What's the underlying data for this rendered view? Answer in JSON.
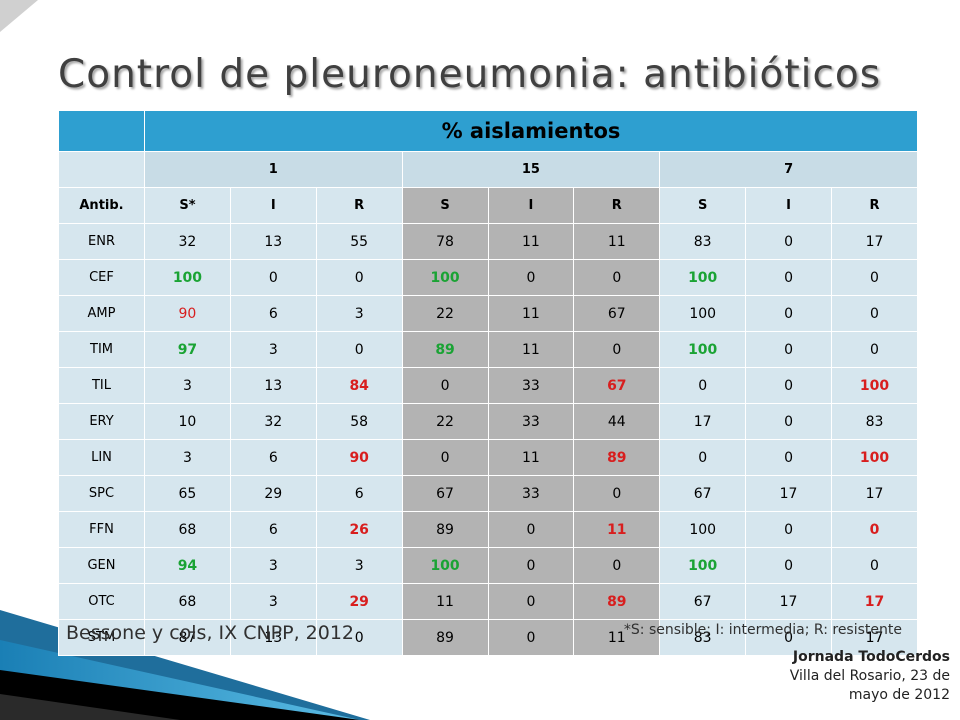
{
  "title": "Control de pleuroneumonia: antibióticos",
  "table": {
    "group_header": "% aislamientos",
    "groups": [
      "1",
      "15",
      "7"
    ],
    "col_header_first": "Antib.",
    "sub_headers": [
      "S*",
      "I",
      "R",
      "S",
      "I",
      "R",
      "S",
      "I",
      "R"
    ],
    "rows": [
      {
        "name": "ENR",
        "cells": [
          {
            "v": "32"
          },
          {
            "v": "13"
          },
          {
            "v": "55"
          },
          {
            "v": "78"
          },
          {
            "v": "11"
          },
          {
            "v": "11"
          },
          {
            "v": "83"
          },
          {
            "v": "0"
          },
          {
            "v": "17"
          }
        ]
      },
      {
        "name": "CEF",
        "cells": [
          {
            "v": "100",
            "c": "green"
          },
          {
            "v": "0"
          },
          {
            "v": "0"
          },
          {
            "v": "100",
            "c": "green"
          },
          {
            "v": "0"
          },
          {
            "v": "0"
          },
          {
            "v": "100",
            "c": "green"
          },
          {
            "v": "0"
          },
          {
            "v": "0"
          }
        ]
      },
      {
        "name": "AMP",
        "cells": [
          {
            "v": "90",
            "c": "redplain"
          },
          {
            "v": "6"
          },
          {
            "v": "3"
          },
          {
            "v": "22"
          },
          {
            "v": "11"
          },
          {
            "v": "67"
          },
          {
            "v": "100"
          },
          {
            "v": "0"
          },
          {
            "v": "0"
          }
        ]
      },
      {
        "name": "TIM",
        "cells": [
          {
            "v": "97",
            "c": "green"
          },
          {
            "v": "3"
          },
          {
            "v": "0"
          },
          {
            "v": "89",
            "c": "green"
          },
          {
            "v": "11"
          },
          {
            "v": "0"
          },
          {
            "v": "100",
            "c": "green"
          },
          {
            "v": "0"
          },
          {
            "v": "0"
          }
        ]
      },
      {
        "name": "TIL",
        "cells": [
          {
            "v": "3"
          },
          {
            "v": "13"
          },
          {
            "v": "84",
            "c": "red"
          },
          {
            "v": "0"
          },
          {
            "v": "33"
          },
          {
            "v": "67",
            "c": "red"
          },
          {
            "v": "0"
          },
          {
            "v": "0"
          },
          {
            "v": "100",
            "c": "red"
          }
        ]
      },
      {
        "name": "ERY",
        "cells": [
          {
            "v": "10"
          },
          {
            "v": "32"
          },
          {
            "v": "58"
          },
          {
            "v": "22"
          },
          {
            "v": "33"
          },
          {
            "v": "44"
          },
          {
            "v": "17"
          },
          {
            "v": "0"
          },
          {
            "v": "83"
          }
        ]
      },
      {
        "name": "LIN",
        "cells": [
          {
            "v": "3"
          },
          {
            "v": "6"
          },
          {
            "v": "90",
            "c": "red"
          },
          {
            "v": "0"
          },
          {
            "v": "11"
          },
          {
            "v": "89",
            "c": "red"
          },
          {
            "v": "0"
          },
          {
            "v": "0"
          },
          {
            "v": "100",
            "c": "red"
          }
        ]
      },
      {
        "name": "SPC",
        "cells": [
          {
            "v": "65"
          },
          {
            "v": "29"
          },
          {
            "v": "6"
          },
          {
            "v": "67"
          },
          {
            "v": "33"
          },
          {
            "v": "0"
          },
          {
            "v": "67"
          },
          {
            "v": "17"
          },
          {
            "v": "17"
          }
        ]
      },
      {
        "name": "FFN",
        "cells": [
          {
            "v": "68"
          },
          {
            "v": "6"
          },
          {
            "v": "26",
            "c": "red"
          },
          {
            "v": "89"
          },
          {
            "v": "0"
          },
          {
            "v": "11",
            "c": "red"
          },
          {
            "v": "100"
          },
          {
            "v": "0"
          },
          {
            "v": "0",
            "c": "red"
          }
        ]
      },
      {
        "name": "GEN",
        "cells": [
          {
            "v": "94",
            "c": "green"
          },
          {
            "v": "3"
          },
          {
            "v": "3"
          },
          {
            "v": "100",
            "c": "green"
          },
          {
            "v": "0"
          },
          {
            "v": "0"
          },
          {
            "v": "100",
            "c": "green"
          },
          {
            "v": "0"
          },
          {
            "v": "0"
          }
        ]
      },
      {
        "name": "OTC",
        "cells": [
          {
            "v": "68"
          },
          {
            "v": "3"
          },
          {
            "v": "29",
            "c": "red"
          },
          {
            "v": "11"
          },
          {
            "v": "0"
          },
          {
            "v": "89",
            "c": "red"
          },
          {
            "v": "67"
          },
          {
            "v": "17"
          },
          {
            "v": "17",
            "c": "red"
          }
        ]
      },
      {
        "name": "STM",
        "cells": [
          {
            "v": "87"
          },
          {
            "v": "13"
          },
          {
            "v": "0"
          },
          {
            "v": "89"
          },
          {
            "v": "0"
          },
          {
            "v": "11"
          },
          {
            "v": "83"
          },
          {
            "v": "0"
          },
          {
            "v": "17"
          }
        ]
      }
    ]
  },
  "footer": {
    "source": "Bessone y cols, IX CNPP, 2012",
    "note": "*S: sensible; I: intermedia; R: resistente",
    "event_name": "Jornada TodoCerdos",
    "event_place": "Villa del Rosario, 23 de",
    "event_date": "mayo de 2012"
  },
  "colors": {
    "header_blue": "#2e9fd0",
    "row_light": "#d6e6ee",
    "cell_gray": "#b3b3b3",
    "green": "#1aa334",
    "red": "#d81e1e"
  }
}
